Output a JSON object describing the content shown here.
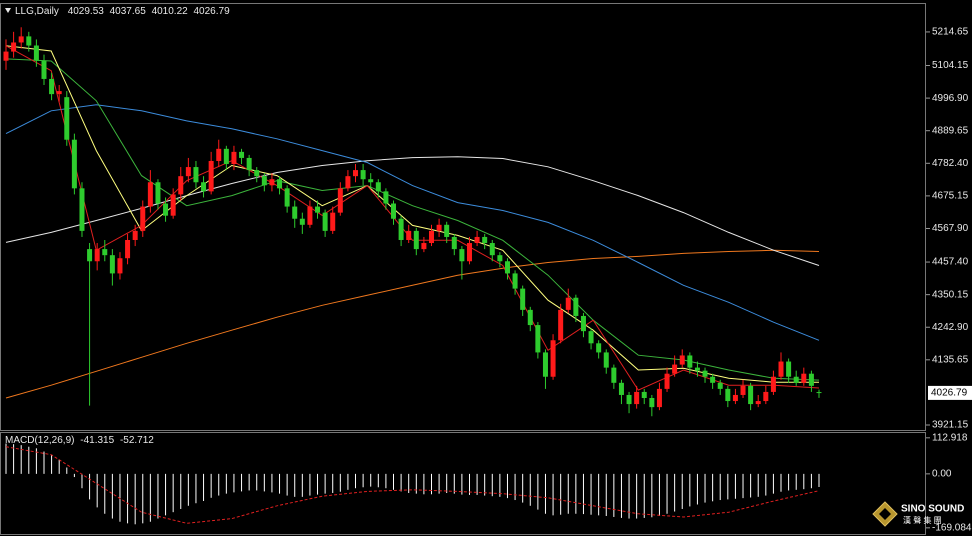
{
  "chart_data": [
    {
      "type": "candlestick",
      "title": "LLG,Daily",
      "up_color": "#ff1a1a",
      "down_color": "#2ecc2e",
      "ylim": [
        3904.7,
        5306.6
      ],
      "yticks": [
        5214.65,
        5104.15,
        {
          "value": 4996.9,
          "label": "4996.90"
        },
        4889.65,
        {
          "value": 4782.4,
          "label": "4782.40"
        },
        4675.15,
        {
          "value": 4567.9,
          "label": "4567.90"
        },
        {
          "value": 4457.4,
          "label": "4457.40"
        },
        4350.15,
        {
          "value": 4242.9,
          "label": "4242.90"
        },
        4135.65,
        3921.15
      ],
      "ohlc": [
        [
          5120,
          5190,
          5090,
          5150
        ],
        [
          5150,
          5215,
          5130,
          5180
        ],
        [
          5180,
          5230,
          5160,
          5200
        ],
        [
          5200,
          5215,
          5150,
          5170
        ],
        [
          5170,
          5190,
          5100,
          5120
        ],
        [
          5120,
          5140,
          5040,
          5060
        ],
        [
          5060,
          5080,
          4990,
          5010
        ],
        [
          5010,
          5040,
          4985,
          5020
        ],
        [
          5000,
          5020,
          4840,
          4860
        ],
        [
          4860,
          4880,
          4680,
          4700
        ],
        [
          4700,
          4720,
          4540,
          4560
        ],
        [
          4500,
          4520,
          3985,
          4460
        ],
        [
          4460,
          4520,
          4430,
          4500
        ],
        [
          4500,
          4530,
          4460,
          4480
        ],
        [
          4480,
          4500,
          4380,
          4420
        ],
        [
          4420,
          4490,
          4400,
          4470
        ],
        [
          4470,
          4550,
          4450,
          4530
        ],
        [
          4530,
          4580,
          4510,
          4560
        ],
        [
          4560,
          4660,
          4540,
          4640
        ],
        [
          4640,
          4760,
          4620,
          4720
        ],
        [
          4720,
          4730,
          4630,
          4650
        ],
        [
          4650,
          4670,
          4590,
          4610
        ],
        [
          4610,
          4700,
          4600,
          4680
        ],
        [
          4680,
          4770,
          4660,
          4740
        ],
        [
          4740,
          4800,
          4720,
          4770
        ],
        [
          4770,
          4790,
          4700,
          4720
        ],
        [
          4720,
          4740,
          4670,
          4690
        ],
        [
          4690,
          4820,
          4680,
          4790
        ],
        [
          4790,
          4860,
          4770,
          4830
        ],
        [
          4830,
          4840,
          4760,
          4780
        ],
        [
          4780,
          4840,
          4760,
          4820
        ],
        [
          4820,
          4830,
          4780,
          4800
        ],
        [
          4800,
          4810,
          4740,
          4760
        ],
        [
          4760,
          4770,
          4720,
          4740
        ],
        [
          4740,
          4750,
          4690,
          4710
        ],
        [
          4710,
          4750,
          4690,
          4730
        ],
        [
          4730,
          4740,
          4680,
          4700
        ],
        [
          4700,
          4710,
          4620,
          4640
        ],
        [
          4640,
          4660,
          4570,
          4600
        ],
        [
          4600,
          4620,
          4550,
          4580
        ],
        [
          4580,
          4660,
          4570,
          4640
        ],
        [
          4640,
          4660,
          4600,
          4620
        ],
        [
          4620,
          4630,
          4540,
          4560
        ],
        [
          4560,
          4640,
          4550,
          4620
        ],
        [
          4620,
          4720,
          4610,
          4700
        ],
        [
          4700,
          4760,
          4690,
          4740
        ],
        [
          4740,
          4780,
          4720,
          4760
        ],
        [
          4760,
          4780,
          4710,
          4730
        ],
        [
          4730,
          4750,
          4700,
          4720
        ],
        [
          4720,
          4730,
          4670,
          4690
        ],
        [
          4690,
          4700,
          4630,
          4650
        ],
        [
          4650,
          4660,
          4580,
          4600
        ],
        [
          4600,
          4610,
          4510,
          4530
        ],
        [
          4530,
          4580,
          4520,
          4560
        ],
        [
          4560,
          4570,
          4480,
          4500
        ],
        [
          4500,
          4540,
          4490,
          4520
        ],
        [
          4520,
          4580,
          4510,
          4560
        ],
        [
          4560,
          4600,
          4540,
          4580
        ],
        [
          4580,
          4590,
          4520,
          4540
        ],
        [
          4540,
          4550,
          4480,
          4500
        ],
        [
          4500,
          4510,
          4400,
          4460
        ],
        [
          4460,
          4540,
          4450,
          4520
        ],
        [
          4520,
          4560,
          4510,
          4540
        ],
        [
          4540,
          4550,
          4500,
          4520
        ],
        [
          4520,
          4530,
          4460,
          4480
        ],
        [
          4480,
          4490,
          4440,
          4460
        ],
        [
          4460,
          4470,
          4400,
          4420
        ],
        [
          4420,
          4430,
          4350,
          4370
        ],
        [
          4370,
          4380,
          4280,
          4300
        ],
        [
          4300,
          4310,
          4230,
          4250
        ],
        [
          4250,
          4260,
          4140,
          4160
        ],
        [
          4160,
          4170,
          4040,
          4080
        ],
        [
          4080,
          4220,
          4070,
          4200
        ],
        [
          4200,
          4320,
          4190,
          4300
        ],
        [
          4300,
          4370,
          4290,
          4340
        ],
        [
          4340,
          4350,
          4260,
          4280
        ],
        [
          4280,
          4290,
          4210,
          4230
        ],
        [
          4230,
          4240,
          4170,
          4190
        ],
        [
          4190,
          4200,
          4140,
          4160
        ],
        [
          4160,
          4170,
          4090,
          4110
        ],
        [
          4110,
          4120,
          4040,
          4060
        ],
        [
          4060,
          4070,
          3990,
          4020
        ],
        [
          4020,
          4030,
          3960,
          3990
        ],
        [
          3990,
          4050,
          3975,
          4030
        ],
        [
          4030,
          4040,
          3990,
          4010
        ],
        [
          4010,
          4020,
          3950,
          3980
        ],
        [
          3980,
          4060,
          3970,
          4040
        ],
        [
          4040,
          4110,
          4030,
          4090
        ],
        [
          4090,
          4150,
          4080,
          4120
        ],
        [
          4120,
          4170,
          4110,
          4150
        ],
        [
          4150,
          4160,
          4090,
          4110
        ],
        [
          4110,
          4130,
          4080,
          4100
        ],
        [
          4100,
          4110,
          4060,
          4080
        ],
        [
          4080,
          4090,
          4040,
          4060
        ],
        [
          4060,
          4070,
          4020,
          4040
        ],
        [
          4040,
          4050,
          3980,
          4000
        ],
        [
          4000,
          4040,
          3990,
          4020
        ],
        [
          4020,
          4070,
          4010,
          4050
        ],
        [
          4050,
          4060,
          3970,
          3990
        ],
        [
          3990,
          4020,
          3980,
          4000
        ],
        [
          4000,
          4050,
          3990,
          4030
        ],
        [
          4030,
          4100,
          4020,
          4080
        ],
        [
          4080,
          4160,
          4070,
          4130
        ],
        [
          4130,
          4140,
          4060,
          4080
        ],
        [
          4080,
          4100,
          4050,
          4060
        ],
        [
          4060,
          4110,
          4050,
          4090
        ],
        [
          4090,
          4100,
          4030,
          4050
        ],
        [
          4029.53,
          4037.65,
          4010.22,
          4026.79
        ]
      ],
      "series": [
        {
          "color": "#f0781e",
          "values": [
            4010,
            4052,
            4098,
            4144,
            4190,
            4233,
            4276,
            4315,
            4348,
            4381,
            4414,
            4437,
            4456,
            4469,
            4476,
            4486,
            4492,
            4496,
            4492
          ]
        },
        {
          "color": "#e6e6e6",
          "values": [
            4522,
            4555,
            4594,
            4634,
            4676,
            4716,
            4752,
            4775,
            4791,
            4801,
            4804,
            4798,
            4771,
            4725,
            4676,
            4620,
            4555,
            4496,
            4446
          ]
        },
        {
          "color": "#3c8cdc",
          "values": [
            4880,
            4955,
            4975,
            4955,
            4922,
            4896,
            4863,
            4824,
            4785,
            4709,
            4653,
            4627,
            4588,
            4529,
            4456,
            4381,
            4325,
            4259,
            4200
          ]
        },
        {
          "color": "#3cb43c",
          "values": [
            5126,
            5119,
            4988,
            4742,
            4643,
            4676,
            4725,
            4693,
            4709,
            4643,
            4594,
            4529,
            4414,
            4266,
            4151,
            4135,
            4102,
            4075,
            4069
          ]
        },
        {
          "color": "#ffff7f",
          "values": [
            5169,
            5152,
            4824,
            4561,
            4676,
            4775,
            4742,
            4643,
            4709,
            4578,
            4545,
            4496,
            4332,
            4233,
            4102,
            4108,
            4075,
            4062,
            4062
          ]
        },
        {
          "color": "#e02020",
          "values": [
            5169,
            5087,
            4496,
            4578,
            4725,
            4791,
            4709,
            4611,
            4709,
            4529,
            4529,
            4446,
            4167,
            4266,
            4036,
            4102,
            4052,
            4052,
            4043
          ]
        }
      ]
    },
    {
      "type": "macd",
      "title": "MACD(12,26,9)",
      "ylim": [
        -179,
        128
      ],
      "yticks": [
        112.918,
        {
          "value": 0,
          "label": "0.00"
        },
        -169.084
      ],
      "histogram_color": "#ffffff",
      "histogram": [
        95,
        93,
        90,
        85,
        80,
        70,
        60,
        45,
        20,
        -10,
        -45,
        -80,
        -105,
        -125,
        -140,
        -150,
        -155,
        -158,
        -155,
        -150,
        -140,
        -130,
        -120,
        -110,
        -100,
        -92,
        -85,
        -75,
        -68,
        -62,
        -58,
        -55,
        -52,
        -52,
        -55,
        -58,
        -62,
        -68,
        -72,
        -72,
        -68,
        -65,
        -62,
        -60,
        -56,
        -50,
        -45,
        -42,
        -40,
        -42,
        -45,
        -50,
        -55,
        -60,
        -62,
        -64,
        -64,
        -62,
        -60,
        -62,
        -65,
        -66,
        -66,
        -68,
        -70,
        -72,
        -76,
        -82,
        -90,
        -100,
        -112,
        -125,
        -130,
        -128,
        -125,
        -125,
        -126,
        -128,
        -130,
        -132,
        -135,
        -138,
        -140,
        -140,
        -138,
        -136,
        -132,
        -125,
        -118,
        -110,
        -102,
        -96,
        -90,
        -86,
        -82,
        -80,
        -78,
        -76,
        -74,
        -72,
        -68,
        -62,
        -56,
        -52,
        -50,
        -48,
        -45,
        -41.315
      ],
      "signal": {
        "color": "#e02020",
        "values": [
          85,
          60,
          -30,
          -120,
          -155,
          -140,
          -100,
          -70,
          -55,
          -50,
          -55,
          -62,
          -75,
          -100,
          -125,
          -135,
          -120,
          -85,
          -52.712
        ]
      }
    }
  ],
  "logo": {
    "name": "SINO SOUND",
    "tagline": "漢 聲 集 團"
  }
}
